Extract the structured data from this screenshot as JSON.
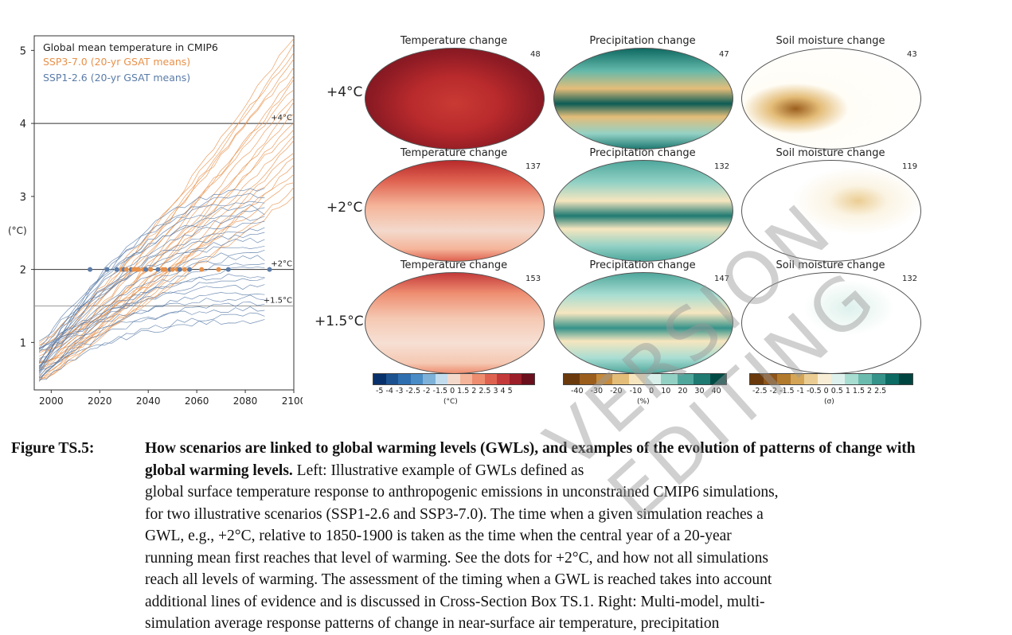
{
  "chart_data": {
    "type": "line",
    "title": "Global mean temperature in CMIP6",
    "ylabel": "(°C)",
    "xlabel": "",
    "xlim": [
      1993,
      2100
    ],
    "ylim": [
      0.35,
      5.2
    ],
    "xticks": [
      2000,
      2020,
      2040,
      2060,
      2080,
      2100
    ],
    "yticks": [
      1,
      2,
      3,
      4,
      5
    ],
    "reference_lines": [
      {
        "value": 4.0,
        "label": "+4°C"
      },
      {
        "value": 2.0,
        "label": "+2°C"
      },
      {
        "value": 1.5,
        "label": "+1.5°C"
      }
    ],
    "series": [
      {
        "name": "SSP3-7.0 (20-yr GSAT means)",
        "color": "#e8914a",
        "end_min": 3.0,
        "end_max": 5.2
      },
      {
        "name": "SSP1-2.6 (20-yr GSAT means)",
        "color": "#5b7ca8",
        "end_min": 1.3,
        "end_max": 3.1
      }
    ],
    "dots_at_2C": [
      {
        "year": 2016,
        "scenario": "SSP1-2.6"
      },
      {
        "year": 2023,
        "scenario": "SSP1-2.6"
      },
      {
        "year": 2027,
        "scenario": "SSP1-2.6"
      },
      {
        "year": 2029,
        "scenario": "SSP3-7.0"
      },
      {
        "year": 2030,
        "scenario": "SSP1-2.6"
      },
      {
        "year": 2031,
        "scenario": "SSP3-7.0"
      },
      {
        "year": 2033,
        "scenario": "SSP1-2.6"
      },
      {
        "year": 2034,
        "scenario": "SSP3-7.0"
      },
      {
        "year": 2035,
        "scenario": "SSP3-7.0"
      },
      {
        "year": 2036,
        "scenario": "SSP3-7.0"
      },
      {
        "year": 2038,
        "scenario": "SSP3-7.0"
      },
      {
        "year": 2039,
        "scenario": "SSP1-2.6"
      },
      {
        "year": 2041,
        "scenario": "SSP3-7.0"
      },
      {
        "year": 2044,
        "scenario": "SSP1-2.6"
      },
      {
        "year": 2046,
        "scenario": "SSP3-7.0"
      },
      {
        "year": 2047,
        "scenario": "SSP3-7.0"
      },
      {
        "year": 2049,
        "scenario": "SSP1-2.6"
      },
      {
        "year": 2050,
        "scenario": "SSP3-7.0"
      },
      {
        "year": 2052,
        "scenario": "SSP3-7.0"
      },
      {
        "year": 2053,
        "scenario": "SSP1-2.6"
      },
      {
        "year": 2055,
        "scenario": "SSP3-7.0"
      },
      {
        "year": 2057,
        "scenario": "SSP1-2.6"
      },
      {
        "year": 2062,
        "scenario": "SSP3-7.0"
      },
      {
        "year": 2069,
        "scenario": "SSP3-7.0"
      },
      {
        "year": 2073,
        "scenario": "SSP1-2.6"
      },
      {
        "year": 2090,
        "scenario": "SSP1-2.6"
      }
    ]
  },
  "maps": {
    "col_titles": [
      "Temperature change",
      "Precipitation change",
      "Soil moisture change"
    ],
    "rows": [
      {
        "label": "+4°C",
        "counts": [
          "48",
          "47",
          "43"
        ]
      },
      {
        "label": "+2°C",
        "counts": [
          "137",
          "132",
          "119"
        ]
      },
      {
        "label": "+1.5°C",
        "counts": [
          "153",
          "147",
          "132"
        ]
      }
    ],
    "colorbars": [
      {
        "ticks": "-5 -4 -3 -2.5 -2 -1.5 0 1.5 2 2.5 3 4 5",
        "unit": "(°C)",
        "colors": [
          "#08306b",
          "#1c5290",
          "#2f6fb0",
          "#4a8cc6",
          "#7fb2d9",
          "#c3ddee",
          "#f3d9cc",
          "#f5b59a",
          "#ee8d70",
          "#df6250",
          "#c43a3a",
          "#9b1e28",
          "#6b0f1c"
        ]
      },
      {
        "ticks": "-40 -30 -20 -10 0 10 20 30 40",
        "unit": "(%)",
        "colors": [
          "#6b3a0c",
          "#9b5e1d",
          "#c58a3b",
          "#e4bd79",
          "#f6e6bf",
          "#d7efe8",
          "#93d1c5",
          "#4fa79c",
          "#1f7a72",
          "#004c45"
        ]
      },
      {
        "ticks": "-2.5 -2 -1.5 -1 -0.5 0 0.5 1 1.5 2 2.5",
        "unit": "(σ)",
        "colors": [
          "#6b3a0c",
          "#8f5519",
          "#b27a2d",
          "#d4a556",
          "#ebcd93",
          "#f8eed6",
          "#def1ec",
          "#a8ddd2",
          "#6bbcae",
          "#35938a",
          "#0c6b63",
          "#004540"
        ]
      }
    ]
  },
  "caption": {
    "label": "Figure TS.5:",
    "title": "How scenarios are linked to global warming levels (GWLs), and examples of the evolution of patterns of change with global warming levels.",
    "lines": [
      "Left: Illustrative example of GWLs defined as",
      "global surface temperature response to anthropogenic emissions in unconstrained CMIP6 simulations,",
      "for two illustrative scenarios (SSP1-2.6 and SSP3-7.0). The time when a given simulation reaches a",
      "GWL, e.g., +2°C, relative to 1850-1900 is taken as the time when the central year of a 20-year",
      "running mean first reaches that level of warming. See the dots for +2°C, and how not all simulations",
      "reach all levels of warming. The assessment of the timing when a GWL is reached takes into account",
      "additional lines of evidence and is discussed in Cross-Section Box TS.1. Right: Multi-model, multi-",
      "simulation average response patterns of change in near-surface air temperature, precipitation"
    ]
  },
  "watermark": [
    "VERSION",
    "EDITING"
  ],
  "colors": {
    "ssp370": "#e8914a",
    "ssp126": "#5b7ca8"
  }
}
